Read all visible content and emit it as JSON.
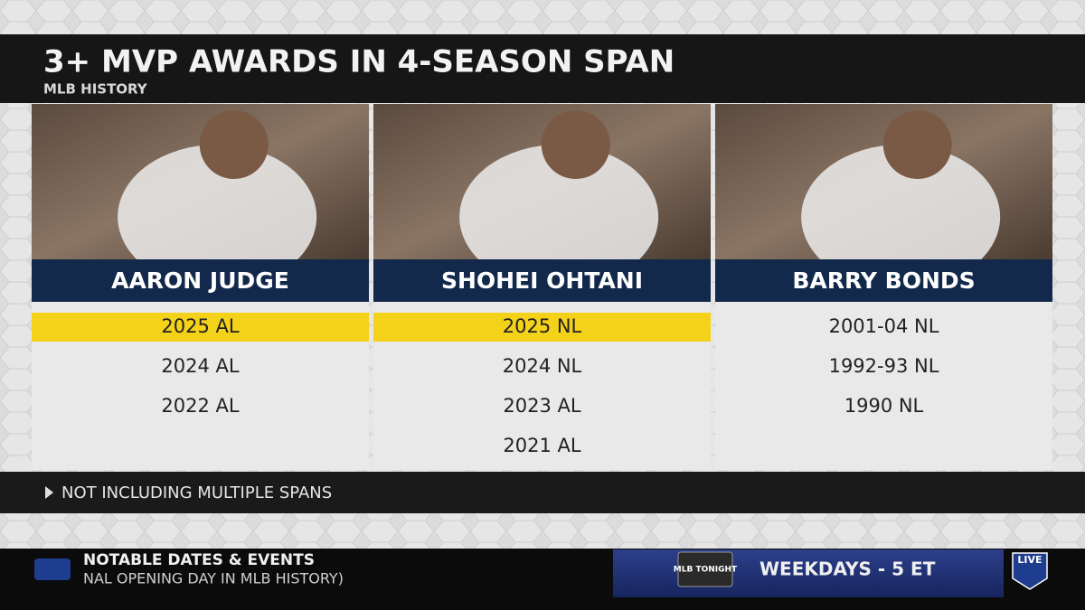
{
  "header": {
    "title": "3+ MVP AWARDS IN 4-SEASON SPAN",
    "subtitle": "MLB HISTORY"
  },
  "players": [
    {
      "name": "AARON JUDGE",
      "awards": [
        {
          "text": "2025 AL",
          "highlighted": true
        },
        {
          "text": "2024 AL",
          "highlighted": false
        },
        {
          "text": "2022 AL",
          "highlighted": false
        }
      ]
    },
    {
      "name": "SHOHEI OHTANI",
      "awards": [
        {
          "text": "2025 NL",
          "highlighted": true
        },
        {
          "text": "2024 NL",
          "highlighted": false
        },
        {
          "text": "2023 AL",
          "highlighted": false
        },
        {
          "text": "2021 AL",
          "highlighted": false
        }
      ]
    },
    {
      "name": "BARRY BONDS",
      "awards": [
        {
          "text": "2001-04 NL",
          "highlighted": false
        },
        {
          "text": "1992-93 NL",
          "highlighted": false
        },
        {
          "text": "1990 NL",
          "highlighted": false
        }
      ]
    }
  ],
  "footnote": "NOT INCLUDING MULTIPLE SPANS",
  "ticker": {
    "heading": "NOTABLE DATES & EVENTS",
    "text": "NAL OPENING DAY IN MLB HISTORY)",
    "show": "MLB TONIGHT",
    "promo": "WEEKDAYS - 5 ET",
    "badge": "LIVE"
  }
}
